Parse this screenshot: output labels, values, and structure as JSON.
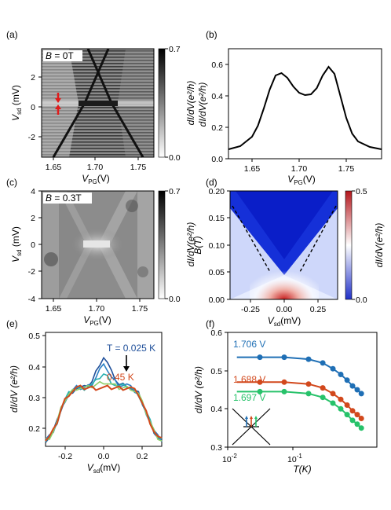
{
  "figure": {
    "panels": {
      "a": {
        "letter": "(a)",
        "annotation_pre": "B",
        "annotation_post": " = 0T",
        "xlabel_main": "V",
        "xlabel_sub": "PG",
        "xlabel_unit": "(V)",
        "ylabel_main": "V",
        "ylabel_sub": "sd",
        "ylabel_unit": " (mV)",
        "cbar_label": "dI/dV(e²/h)",
        "cbar_ticks": [
          "0.7",
          "0.0"
        ],
        "xticks": [
          "1.65",
          "1.70",
          "1.75"
        ],
        "yticks": [
          "2",
          "0",
          "-2"
        ]
      },
      "b": {
        "letter": "(b)",
        "xlabel_main": "V",
        "xlabel_sub": "PG",
        "xlabel_unit": "(V)",
        "ylabel": "dI/dV(e²/h)",
        "xticks": [
          "1.65",
          "1.70",
          "1.75"
        ],
        "yticks": [
          "0.6",
          "0.4",
          "0.2",
          "0.0"
        ]
      },
      "c": {
        "letter": "(c)",
        "annotation_pre": "B",
        "annotation_post": " = 0.3T",
        "xlabel_main": "V",
        "xlabel_sub": "PG",
        "xlabel_unit": "(V)",
        "ylabel_main": "V",
        "ylabel_sub": "sd",
        "ylabel_unit": " (mV)",
        "cbar_label": "dI/dV(e²/h)",
        "cbar_ticks": [
          "0.7",
          "0.0"
        ],
        "xticks": [
          "1.65",
          "1.70",
          "1.75"
        ],
        "yticks": [
          "4",
          "2",
          "0",
          "-2",
          "-4"
        ]
      },
      "d": {
        "letter": "(d)",
        "xlabel_main": "V",
        "xlabel_sub": "sd",
        "xlabel_unit": "(mV)",
        "ylabel": "B(T)",
        "cbar_label": "dI/dV(e²/h)",
        "cbar_ticks": [
          "0.5",
          "0.0"
        ],
        "xticks": [
          "-0.25",
          "0.00",
          "0.25"
        ],
        "yticks": [
          "0.20",
          "0.15",
          "0.10",
          "0.05",
          "0.00"
        ]
      },
      "e": {
        "letter": "(e)",
        "xlabel_main": "V",
        "xlabel_sub": "sd",
        "xlabel_unit": "(mV)",
        "ylabel": "dI/dV (e²/h)",
        "ann_t_low": "T = 0.025 K",
        "ann_t_high": "0.45 K",
        "xticks": [
          "-0.2",
          "0.0",
          "0.2"
        ],
        "yticks": [
          "0.5",
          "0.4",
          "0.3",
          "0.2"
        ]
      },
      "f": {
        "letter": "(f)",
        "xlabel": "T(K)",
        "ylabel": "dI/dV (e²/h)",
        "series_labels": [
          "1.706 V",
          "1.688 V",
          "1.697 V"
        ],
        "yticks": [
          "0.6",
          "0.5",
          "0.4",
          "0.3"
        ]
      }
    },
    "colors": {
      "blue": "#1f6fb5",
      "red": "#d2481c",
      "green": "#27c26a",
      "arrow_red": "#e01b1b"
    }
  },
  "chart_data": [
    {
      "type": "line",
      "panel": "b",
      "x": [
        1.63,
        1.64,
        1.65,
        1.655,
        1.66,
        1.665,
        1.67,
        1.675,
        1.68,
        1.685,
        1.69,
        1.695,
        1.7,
        1.705,
        1.71,
        1.715,
        1.72,
        1.725,
        1.73,
        1.735,
        1.74,
        1.75,
        1.76
      ],
      "y": [
        0.06,
        0.08,
        0.14,
        0.21,
        0.32,
        0.44,
        0.53,
        0.545,
        0.515,
        0.46,
        0.42,
        0.405,
        0.41,
        0.45,
        0.53,
        0.585,
        0.54,
        0.4,
        0.26,
        0.16,
        0.11,
        0.075,
        0.06
      ],
      "xlim": [
        1.63,
        1.76
      ],
      "ylim": [
        0.0,
        0.7
      ]
    },
    {
      "type": "line",
      "panel": "e",
      "x": [
        -0.3,
        -0.28,
        -0.26,
        -0.24,
        -0.22,
        -0.2,
        -0.18,
        -0.16,
        -0.14,
        -0.12,
        -0.1,
        -0.08,
        -0.06,
        -0.04,
        -0.02,
        0.0,
        0.02,
        0.04,
        0.06,
        0.08,
        0.1,
        0.12,
        0.14,
        0.16,
        0.18,
        0.2,
        0.22,
        0.24,
        0.26,
        0.28,
        0.3
      ],
      "series": [
        {
          "name": "T = 0.025 K",
          "values": [
            0.17,
            0.18,
            0.2,
            0.23,
            0.27,
            0.3,
            0.32,
            0.33,
            0.34,
            0.34,
            0.34,
            0.35,
            0.36,
            0.39,
            0.42,
            0.44,
            0.42,
            0.39,
            0.37,
            0.35,
            0.35,
            0.35,
            0.34,
            0.33,
            0.32,
            0.29,
            0.26,
            0.23,
            0.2,
            0.18,
            0.17
          ]
        },
        {
          "name": "",
          "values": [
            0.17,
            0.18,
            0.2,
            0.23,
            0.27,
            0.3,
            0.32,
            0.33,
            0.34,
            0.34,
            0.34,
            0.345,
            0.355,
            0.375,
            0.4,
            0.41,
            0.4,
            0.375,
            0.36,
            0.35,
            0.35,
            0.35,
            0.34,
            0.33,
            0.32,
            0.29,
            0.26,
            0.23,
            0.2,
            0.18,
            0.17
          ]
        },
        {
          "name": "",
          "values": [
            0.17,
            0.18,
            0.2,
            0.23,
            0.27,
            0.3,
            0.32,
            0.33,
            0.34,
            0.34,
            0.34,
            0.345,
            0.35,
            0.36,
            0.375,
            0.385,
            0.375,
            0.36,
            0.35,
            0.345,
            0.345,
            0.345,
            0.34,
            0.33,
            0.32,
            0.29,
            0.26,
            0.23,
            0.2,
            0.18,
            0.17
          ]
        },
        {
          "name": "",
          "values": [
            0.17,
            0.18,
            0.2,
            0.23,
            0.27,
            0.3,
            0.32,
            0.33,
            0.34,
            0.34,
            0.34,
            0.34,
            0.345,
            0.35,
            0.355,
            0.36,
            0.355,
            0.35,
            0.345,
            0.34,
            0.34,
            0.34,
            0.34,
            0.33,
            0.32,
            0.29,
            0.26,
            0.23,
            0.2,
            0.18,
            0.17
          ]
        },
        {
          "name": "0.45 K",
          "values": [
            0.17,
            0.18,
            0.2,
            0.23,
            0.27,
            0.3,
            0.32,
            0.33,
            0.34,
            0.34,
            0.34,
            0.34,
            0.34,
            0.34,
            0.34,
            0.34,
            0.34,
            0.34,
            0.34,
            0.34,
            0.34,
            0.34,
            0.34,
            0.33,
            0.32,
            0.29,
            0.26,
            0.23,
            0.2,
            0.18,
            0.17
          ]
        }
      ],
      "xlim": [
        -0.3,
        0.3
      ],
      "ylim": [
        0.15,
        0.52
      ]
    },
    {
      "type": "scatter",
      "panel": "f",
      "x_log": true,
      "xlim": [
        0.01,
        0.7
      ],
      "ylim": [
        0.3,
        0.6
      ],
      "series": [
        {
          "name": "1.706 V",
          "x": [
            0.025,
            0.05,
            0.1,
            0.15,
            0.2,
            0.25,
            0.3,
            0.35,
            0.4,
            0.45
          ],
          "values": [
            0.535,
            0.535,
            0.53,
            0.52,
            0.505,
            0.49,
            0.475,
            0.46,
            0.45,
            0.44
          ]
        },
        {
          "name": "1.688 V",
          "x": [
            0.025,
            0.05,
            0.1,
            0.15,
            0.2,
            0.25,
            0.3,
            0.35,
            0.4,
            0.45
          ],
          "values": [
            0.47,
            0.47,
            0.465,
            0.455,
            0.44,
            0.425,
            0.41,
            0.395,
            0.385,
            0.375
          ]
        },
        {
          "name": "1.697 V",
          "x": [
            0.025,
            0.05,
            0.1,
            0.15,
            0.2,
            0.25,
            0.3,
            0.35,
            0.4,
            0.45
          ],
          "values": [
            0.445,
            0.445,
            0.44,
            0.43,
            0.415,
            0.4,
            0.385,
            0.37,
            0.36,
            0.35
          ]
        }
      ]
    }
  ]
}
